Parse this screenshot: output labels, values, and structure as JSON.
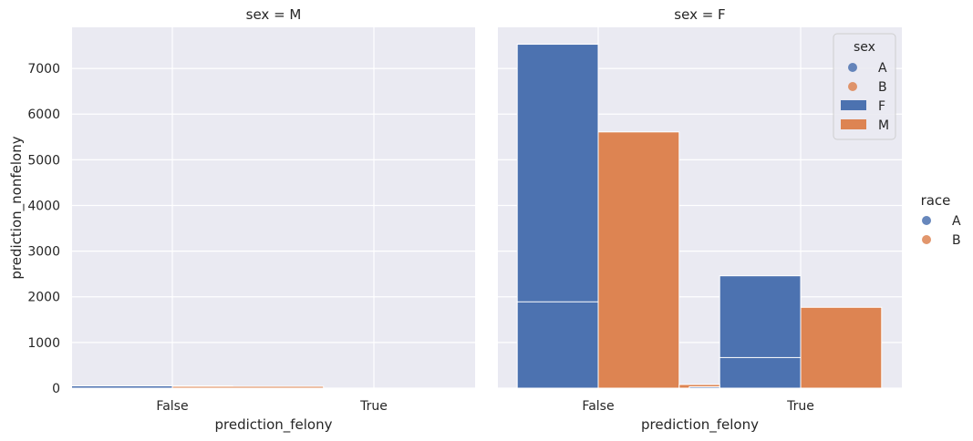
{
  "chart_data": {
    "type": "bar",
    "x_categories": [
      "False",
      "True"
    ],
    "xlabel": "prediction_felony",
    "ylabel": "prediction_nonfelony",
    "ylim": [
      0,
      7900
    ],
    "yticks": [
      0,
      1000,
      2000,
      3000,
      4000,
      5000,
      6000,
      7000
    ],
    "grid": true,
    "panels": [
      {
        "title": "sex = M",
        "bars": [
          {
            "x_start": -0.5,
            "x_end": 0.3,
            "base": 0,
            "value": 50,
            "color": "#4c72b0"
          },
          {
            "x_start": 0.0,
            "x_end": 0.75,
            "base": 0,
            "value": 40,
            "color": "#dd8452"
          }
        ]
      },
      {
        "title": "sex = F",
        "bars": [
          {
            "x_start": -0.4,
            "x_end": 0.0,
            "base": 0,
            "value": 7530,
            "color": "#4c72b0"
          },
          {
            "x_start": -0.4,
            "x_end": 0.0,
            "base": 0,
            "value": 1890,
            "color": "#4c72b0"
          },
          {
            "x_start": 0.0,
            "x_end": 0.4,
            "base": 0,
            "value": 5610,
            "color": "#dd8452"
          },
          {
            "x_start": 0.6,
            "x_end": 1.0,
            "base": 0,
            "value": 2460,
            "color": "#4c72b0"
          },
          {
            "x_start": 0.6,
            "x_end": 1.0,
            "base": 0,
            "value": 670,
            "color": "#4c72b0"
          },
          {
            "x_start": 1.0,
            "x_end": 1.4,
            "base": 0,
            "value": 1770,
            "color": "#dd8452"
          },
          {
            "x_start": 0.4,
            "x_end": 0.6,
            "base": 0,
            "value": 80,
            "color": "#dd8452"
          },
          {
            "x_start": 0.45,
            "x_end": 0.6,
            "base": 0,
            "value": 30,
            "color": "#4c72b0"
          }
        ],
        "legend": {
          "title": "sex",
          "placement": "top-right",
          "entries": [
            {
              "label": "A",
              "marker": "circle",
              "color": "#4c72b0"
            },
            {
              "label": "B",
              "marker": "circle",
              "color": "#dd8452"
            },
            {
              "label": "F",
              "marker": "patch",
              "color": "#4c72b0"
            },
            {
              "label": "M",
              "marker": "patch",
              "color": "#dd8452"
            }
          ]
        }
      }
    ],
    "figure_legend": {
      "title": "race",
      "placement": "right",
      "entries": [
        {
          "label": "A",
          "marker": "circle",
          "color": "#4c72b0"
        },
        {
          "label": "B",
          "marker": "circle",
          "color": "#dd8452"
        }
      ]
    },
    "colors": {
      "background": "#eaeaf2",
      "grid": "#ffffff",
      "A": "#4c72b0",
      "B": "#dd8452"
    }
  }
}
